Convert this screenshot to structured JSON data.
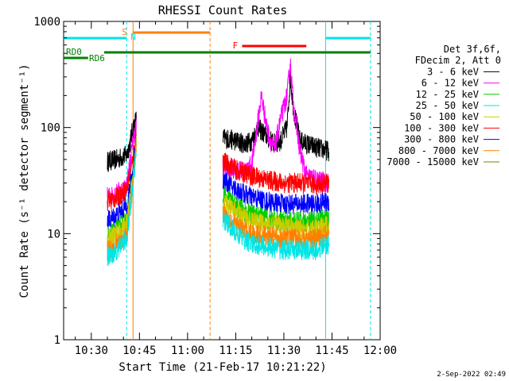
{
  "chart_data": {
    "type": "line",
    "title": "RHESSI Count Rates",
    "xlabel": "Start Time (21-Feb-17 10:21:22)",
    "ylabel": "Count Rate (s⁻¹ detector segment⁻¹)",
    "yscale": "log",
    "ylim": [
      1,
      1000
    ],
    "xlim": [
      "10:21:22",
      "12:00:00"
    ],
    "y_ticks": [
      {
        "value": 1,
        "label": "1"
      },
      {
        "value": 10,
        "label": "10"
      },
      {
        "value": 100,
        "label": "100"
      },
      {
        "value": 1000,
        "label": "1000"
      }
    ],
    "x_ticks": [
      {
        "value": "10:30",
        "label": "10:30"
      },
      {
        "value": "10:45",
        "label": "10:45"
      },
      {
        "value": "11:00",
        "label": "11:00"
      },
      {
        "value": "11:15",
        "label": "11:15"
      },
      {
        "value": "11:30",
        "label": "11:30"
      },
      {
        "value": "11:45",
        "label": "11:45"
      },
      {
        "value": "12:00",
        "label": "12:00"
      }
    ],
    "legend": {
      "placement": "right",
      "header": [
        "Det 3f,6f,",
        "FDecim 2, Att 0"
      ],
      "entries": [
        {
          "label": "3 - 6 keV",
          "color": "#000000"
        },
        {
          "label": "6 - 12 keV",
          "color": "#ff00ff"
        },
        {
          "label": "12 - 25 keV",
          "color": "#00cc00"
        },
        {
          "label": "25 - 50 keV",
          "color": "#00e5e5"
        },
        {
          "label": "50 - 100 keV",
          "color": "#cccc00"
        },
        {
          "label": "100 - 300 keV",
          "color": "#ff0000"
        },
        {
          "label": "300 - 800 keV",
          "color": "#0000ff"
        },
        {
          "label": "800 - 7000 keV",
          "color": "#ff8000"
        },
        {
          "label": "7000 - 15000 keV",
          "color": "#808000"
        }
      ]
    },
    "series": [
      {
        "color": "#000000",
        "x": [
          "10:35",
          "10:38",
          "10:41",
          "10:42",
          "10:43",
          "10:44"
        ],
        "y": [
          48,
          50,
          55,
          70,
          100,
          120
        ],
        "x2": [
          "11:11",
          "11:15",
          "11:18",
          "11:20",
          "11:22",
          "11:25",
          "11:27",
          "11:29",
          "11:31",
          "11:32",
          "11:33",
          "11:35",
          "11:37",
          "11:40",
          "11:44"
        ],
        "y2": [
          80,
          75,
          70,
          75,
          100,
          80,
          70,
          75,
          100,
          300,
          150,
          75,
          70,
          65,
          60
        ]
      },
      {
        "color": "#ff00ff",
        "x": [
          "10:35",
          "10:38",
          "10:41",
          "10:42",
          "10:43",
          "10:44"
        ],
        "y": [
          22,
          24,
          28,
          45,
          75,
          105
        ],
        "x2": [
          "11:11",
          "11:15",
          "11:18",
          "11:20",
          "11:22",
          "11:23",
          "11:25",
          "11:27",
          "11:29",
          "11:31",
          "11:32",
          "11:33",
          "11:35",
          "11:37",
          "11:40",
          "11:44"
        ],
        "y2": [
          42,
          40,
          38,
          45,
          120,
          200,
          90,
          60,
          120,
          200,
          400,
          160,
          60,
          35,
          32,
          30
        ]
      },
      {
        "color": "#ff0000",
        "x": [
          "10:35",
          "10:38",
          "10:41",
          "10:43",
          "10:44"
        ],
        "y": [
          20,
          22,
          26,
          50,
          90
        ],
        "x2": [
          "11:11",
          "11:15",
          "11:20",
          "11:25",
          "11:30",
          "11:35",
          "11:40",
          "11:44"
        ],
        "y2": [
          48,
          40,
          35,
          32,
          30,
          30,
          29,
          30
        ]
      },
      {
        "color": "#0000ff",
        "x": [
          "10:35",
          "10:38",
          "10:41",
          "10:43",
          "10:44"
        ],
        "y": [
          13,
          15,
          18,
          40,
          80
        ],
        "x2": [
          "11:11",
          "11:15",
          "11:20",
          "11:25",
          "11:30",
          "11:35",
          "11:40",
          "11:44"
        ],
        "y2": [
          32,
          26,
          22,
          20,
          19,
          19,
          19,
          20
        ]
      },
      {
        "color": "#00cc00",
        "x": [
          "10:35",
          "10:38",
          "10:41",
          "10:43",
          "10:44"
        ],
        "y": [
          10,
          11,
          13,
          35,
          75
        ],
        "x2": [
          "11:11",
          "11:15",
          "11:20",
          "11:25",
          "11:30",
          "11:35",
          "11:40",
          "11:44"
        ],
        "y2": [
          24,
          18,
          15,
          14,
          13,
          13,
          13,
          14
        ]
      },
      {
        "color": "#cccc00",
        "x": [
          "10:35",
          "10:38",
          "10:41",
          "10:43",
          "10:44"
        ],
        "y": [
          9,
          10,
          12,
          32,
          70
        ],
        "x2": [
          "11:11",
          "11:15",
          "11:20",
          "11:25",
          "11:30",
          "11:35",
          "11:40",
          "11:44"
        ],
        "y2": [
          20,
          16,
          13,
          12,
          12,
          11,
          11,
          12
        ]
      },
      {
        "color": "#ff8000",
        "x": [
          "10:35",
          "10:38",
          "10:41",
          "10:43",
          "10:44"
        ],
        "y": [
          7,
          8,
          10,
          30,
          68
        ],
        "x2": [
          "11:11",
          "11:15",
          "11:20",
          "11:25",
          "11:30",
          "11:35",
          "11:40",
          "11:44"
        ],
        "y2": [
          16,
          12,
          10,
          9.5,
          9,
          9,
          9,
          10
        ]
      },
      {
        "color": "#00e5e5",
        "x": [
          "10:35",
          "10:38",
          "10:41",
          "10:43",
          "10:44"
        ],
        "y": [
          6,
          7,
          9,
          28,
          65
        ],
        "x2": [
          "11:11",
          "11:15",
          "11:20",
          "11:25",
          "11:30",
          "11:35",
          "11:40",
          "11:44"
        ],
        "y2": [
          14,
          10,
          8,
          7.5,
          7,
          7,
          7,
          8
        ]
      }
    ],
    "annotations": {
      "flag_bars": [
        {
          "label": "S",
          "color": "#ff8000",
          "x_start": "10:43",
          "x_end": "11:07"
        },
        {
          "label": "N",
          "color": "#00e5e5",
          "x_start": "10:21:22",
          "x_end": "10:41"
        },
        {
          "label": "",
          "color": "#00e5e5",
          "x_start": "11:43",
          "x_end": "11:57"
        },
        {
          "label": "F",
          "color": "#ff0000",
          "x_start": "11:17",
          "x_end": "11:37"
        },
        {
          "label": "RD0",
          "color": "#008000",
          "x_start": "10:34",
          "x_end": "11:57"
        },
        {
          "label": "RD6",
          "color": "#008000",
          "x_start": "10:21:22",
          "x_end": "10:29"
        }
      ],
      "vlines": [
        {
          "x": "10:41",
          "color": "#00e5e5",
          "style": "dashed"
        },
        {
          "x": "10:43",
          "color": "#ff8000",
          "style": "solid"
        },
        {
          "x": "11:07",
          "color": "#ff8000",
          "style": "dashed"
        },
        {
          "x": "11:43",
          "color": "#00e5e5",
          "style": "solid"
        },
        {
          "x": "11:57",
          "color": "#00e5e5",
          "style": "dashed"
        }
      ]
    },
    "timestamp": "2-Sep-2022 02:49"
  }
}
